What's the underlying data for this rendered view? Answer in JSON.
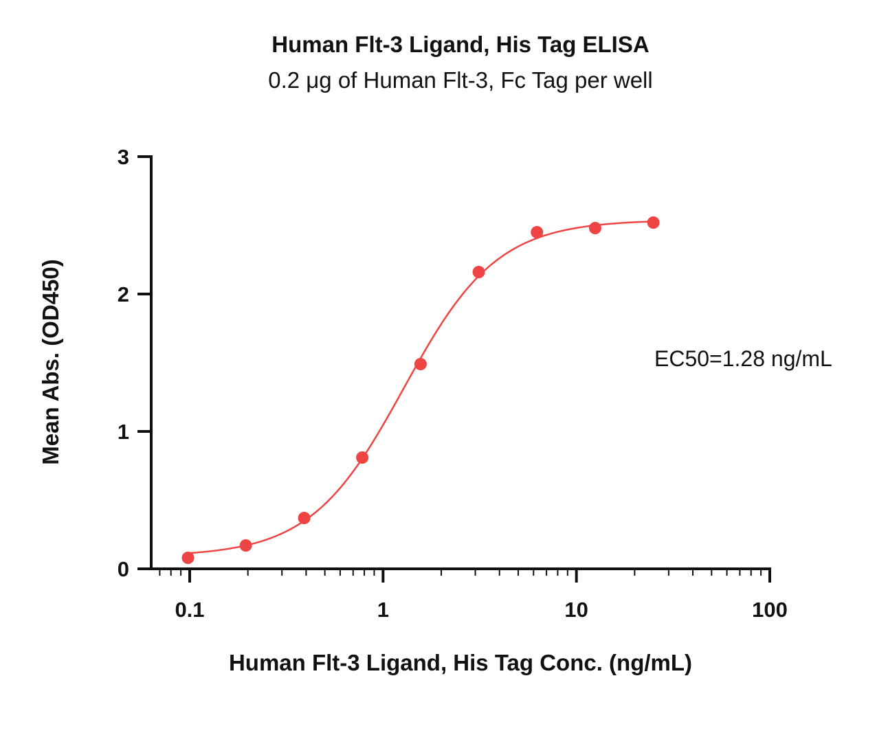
{
  "chart_data": {
    "type": "scatter",
    "title": "Human Flt-3 Ligand, His Tag ELISA",
    "subtitle": "0.2 μg of Human Flt-3, Fc Tag per well",
    "xlabel": "Human Flt-3 Ligand, His Tag Conc. (ng/mL)",
    "ylabel": "Mean Abs. (OD450)",
    "xscale": "log",
    "xlim": [
      0.06,
      100
    ],
    "ylim": [
      0,
      3
    ],
    "x_ticks": [
      0.1,
      1,
      10,
      100
    ],
    "x_tick_labels": [
      "0.1",
      "1",
      "10",
      "100"
    ],
    "y_ticks": [
      0,
      1,
      2,
      3
    ],
    "y_tick_labels": [
      "0",
      "1",
      "2",
      "3"
    ],
    "grid": false,
    "legend": "none",
    "series": [
      {
        "color": "#ef4444",
        "x": [
          0.098,
          0.195,
          0.391,
          0.781,
          1.563,
          3.125,
          6.25,
          12.5,
          25
        ],
        "y": [
          0.08,
          0.17,
          0.37,
          0.81,
          1.49,
          2.16,
          2.45,
          2.48,
          2.52
        ],
        "fit": {
          "model": "4PL",
          "bottom": 0.09,
          "top": 2.54,
          "ec50": 1.28,
          "hill": 1.8
        }
      }
    ],
    "annotations": [
      {
        "text": "EC50=1.28 ng/mL"
      }
    ]
  }
}
